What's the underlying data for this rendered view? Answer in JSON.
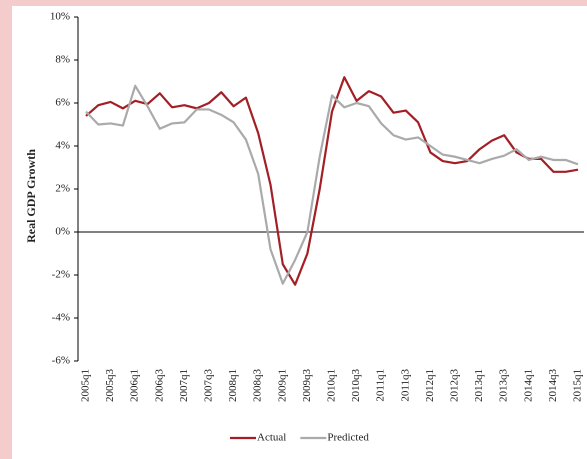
{
  "chart_data": {
    "type": "line",
    "y_label": "Real GDP Growth",
    "categories": [
      "2005q1",
      null,
      "2005q3",
      null,
      "2006q1",
      null,
      "2006q3",
      null,
      "2007q1",
      null,
      "2007q3",
      null,
      "2008q1",
      null,
      "2008q3",
      null,
      "2009q1",
      null,
      "2009q3",
      null,
      "2010q1",
      null,
      "2010q3",
      null,
      "2011q1",
      null,
      "2011q3",
      null,
      "2012q1",
      null,
      "2012q3",
      null,
      "2013q1",
      null,
      "2013q3",
      null,
      "2014q1",
      null,
      "2014q3",
      null,
      "2015q1"
    ],
    "series": [
      {
        "name": "Actual",
        "color": "#a31f26",
        "values": [
          5.4,
          5.9,
          6.05,
          5.75,
          6.1,
          5.95,
          6.45,
          5.8,
          5.9,
          5.75,
          6.0,
          6.5,
          5.85,
          6.25,
          4.6,
          2.2,
          -1.5,
          -2.45,
          -1.0,
          2.0,
          5.6,
          7.2,
          6.1,
          6.55,
          6.3,
          5.55,
          5.65,
          5.1,
          3.7,
          3.3,
          3.2,
          3.3,
          3.85,
          4.25,
          4.5,
          3.7,
          3.4,
          3.4,
          2.8,
          2.8,
          2.9
        ]
      },
      {
        "name": "Predicted",
        "color": "#aaaaaa",
        "values": [
          5.6,
          5.0,
          5.05,
          4.95,
          6.8,
          5.85,
          4.8,
          5.05,
          5.1,
          5.7,
          5.7,
          5.45,
          5.1,
          4.3,
          2.7,
          -0.8,
          -2.4,
          -1.3,
          0.0,
          3.5,
          6.35,
          5.8,
          6.0,
          5.85,
          5.05,
          4.5,
          4.3,
          4.4,
          4.0,
          3.6,
          3.5,
          3.35,
          3.2,
          3.4,
          3.55,
          3.85,
          3.35,
          3.5,
          3.35,
          3.35,
          3.15
        ]
      }
    ],
    "ylim": [
      -6,
      10
    ],
    "yticks": [
      {
        "value": -6,
        "label": "-6%"
      },
      {
        "value": -4,
        "label": "-4%"
      },
      {
        "value": -2,
        "label": "-2%"
      },
      {
        "value": 0,
        "label": "0%"
      },
      {
        "value": 2,
        "label": "2%"
      },
      {
        "value": 4,
        "label": "4%"
      },
      {
        "value": 6,
        "label": "6%"
      },
      {
        "value": 8,
        "label": "8%"
      },
      {
        "value": 10,
        "label": "10%"
      }
    ],
    "legend": "bottom"
  }
}
